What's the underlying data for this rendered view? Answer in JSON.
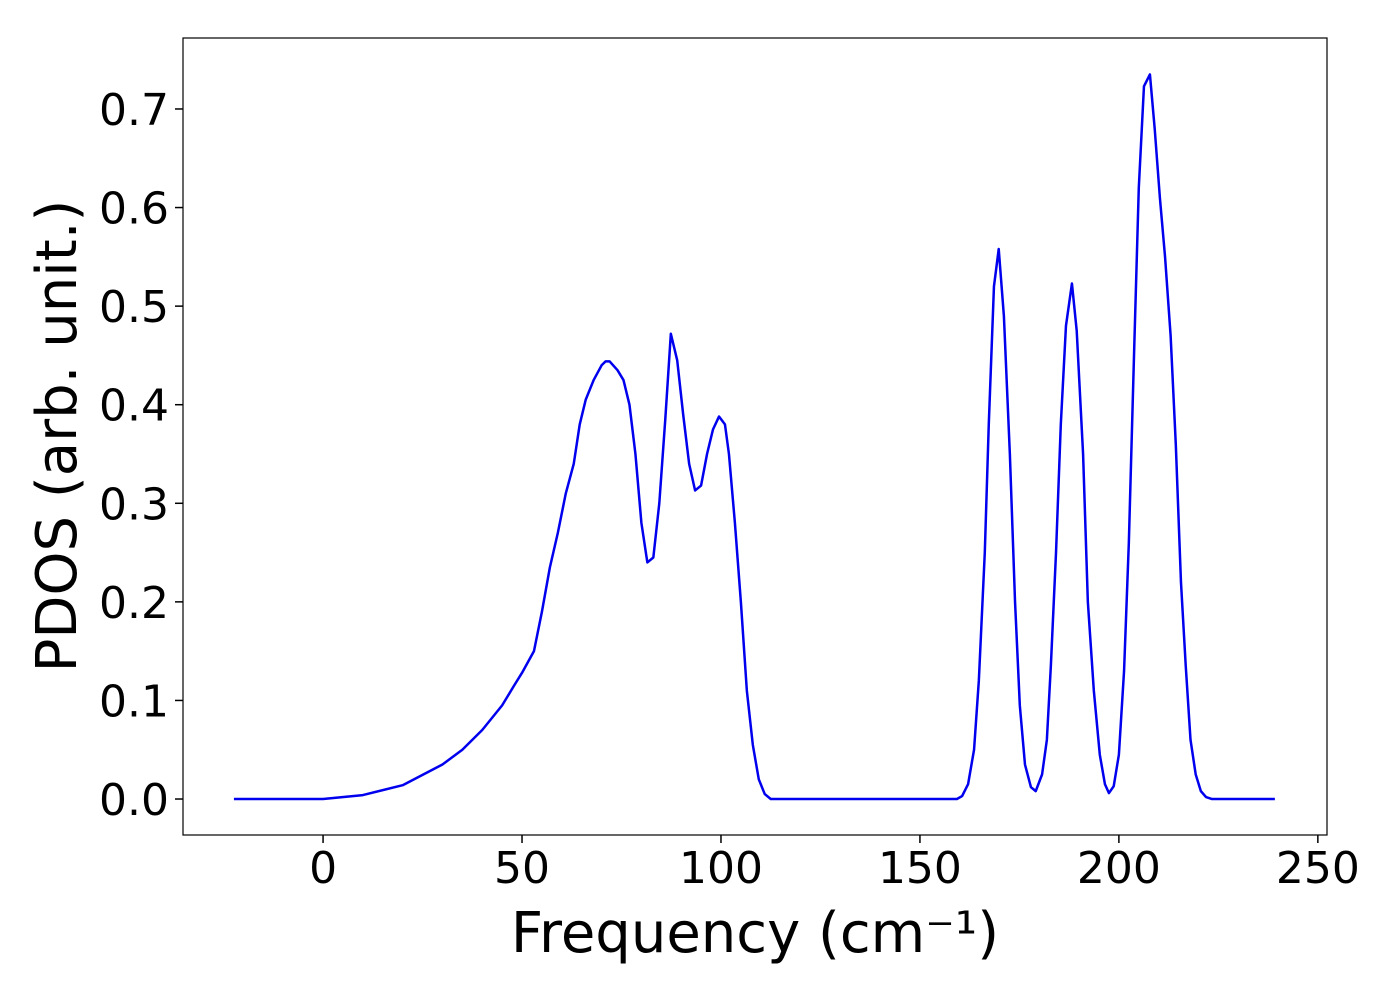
{
  "chart_data": {
    "type": "line",
    "xlabel": "Frequency (cm⁻¹)",
    "ylabel": "PDOS (arb. unit.)",
    "xlim": [
      -35.2,
      252.3
    ],
    "ylim": [
      -0.0365,
      0.772
    ],
    "xticks": [
      0,
      50,
      100,
      150,
      200,
      250
    ],
    "yticks": [
      {
        "value": 0,
        "label": "0.0"
      },
      0.1,
      0.2,
      0.3,
      0.4,
      0.5,
      0.6,
      0.7
    ],
    "grid": false,
    "x": [
      -22.4,
      0,
      10,
      20,
      30,
      35,
      40,
      45,
      48,
      50,
      53,
      55,
      57,
      59,
      61,
      63,
      64.5,
      66,
      68,
      70,
      71,
      72,
      74,
      75.5,
      77,
      78.5,
      80,
      81.5,
      83,
      84.5,
      86,
      87.4,
      89,
      90.5,
      92,
      93.5,
      95,
      96.5,
      98,
      99.5,
      101,
      102,
      103.5,
      105,
      106.5,
      108,
      109.5,
      111,
      112.5,
      159.3,
      160.6,
      162.1,
      163.6,
      164.8,
      166.3,
      167.3,
      168.6,
      169.8,
      171.1,
      172.6,
      173.9,
      175.1,
      176.4,
      177.9,
      179.1,
      180.7,
      181.9,
      182.9,
      184.2,
      185.4,
      186.7,
      188.2,
      189.4,
      191,
      192.2,
      193.7,
      195.2,
      196.5,
      197.5,
      198.7,
      200,
      201.3,
      202.5,
      203.8,
      205,
      206.3,
      207.8,
      209,
      210.3,
      211.6,
      213,
      214.3,
      215.6,
      216.8,
      218,
      219.3,
      220.6,
      221.9,
      223.4,
      239.2
    ],
    "series": [
      {
        "name": "PDOS",
        "color": "#0000ee",
        "values": [
          0,
          0,
          0.004,
          0.014,
          0.035,
          0.05,
          0.07,
          0.095,
          0.115,
          0.128,
          0.15,
          0.19,
          0.235,
          0.27,
          0.31,
          0.34,
          0.38,
          0.405,
          0.425,
          0.44,
          0.444,
          0.444,
          0.435,
          0.425,
          0.4,
          0.35,
          0.28,
          0.24,
          0.245,
          0.3,
          0.385,
          0.472,
          0.445,
          0.39,
          0.34,
          0.313,
          0.318,
          0.35,
          0.375,
          0.388,
          0.38,
          0.35,
          0.28,
          0.2,
          0.11,
          0.055,
          0.02,
          0.005,
          0,
          0,
          0.003,
          0.015,
          0.05,
          0.12,
          0.25,
          0.38,
          0.52,
          0.558,
          0.49,
          0.35,
          0.2,
          0.095,
          0.035,
          0.012,
          0.008,
          0.025,
          0.06,
          0.135,
          0.25,
          0.38,
          0.48,
          0.523,
          0.475,
          0.35,
          0.2,
          0.11,
          0.045,
          0.015,
          0.006,
          0.013,
          0.045,
          0.13,
          0.26,
          0.45,
          0.62,
          0.723,
          0.735,
          0.68,
          0.61,
          0.55,
          0.47,
          0.36,
          0.22,
          0.135,
          0.06,
          0.025,
          0.008,
          0.002,
          0,
          0
        ]
      }
    ]
  }
}
